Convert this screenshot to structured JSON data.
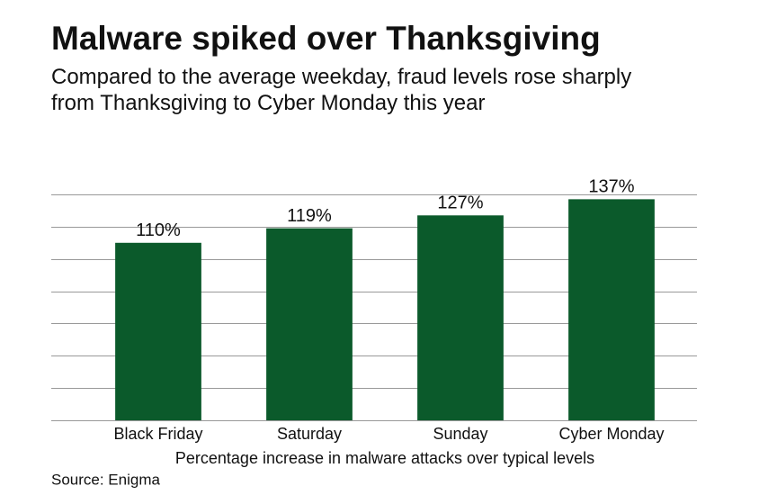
{
  "chart_data": {
    "type": "bar",
    "title": "Malware spiked over Thanksgiving",
    "subtitle": "Compared to the average weekday, fraud levels rose sharply from Thanksgiving to Cyber Monday this year",
    "categories": [
      "Black Friday",
      "Saturday",
      "Sunday",
      "Cyber Monday"
    ],
    "values": [
      110,
      119,
      127,
      137
    ],
    "value_labels": [
      "110%",
      "119%",
      "127%",
      "137%"
    ],
    "color": "#0b5a2b",
    "ylim": [
      0,
      140
    ],
    "yticks": [
      0,
      20,
      40,
      60,
      80,
      100,
      120,
      140
    ],
    "grid": true,
    "x_label": "Percentage increase in malware attacks over typical levels",
    "source": "Source: Enigma"
  }
}
